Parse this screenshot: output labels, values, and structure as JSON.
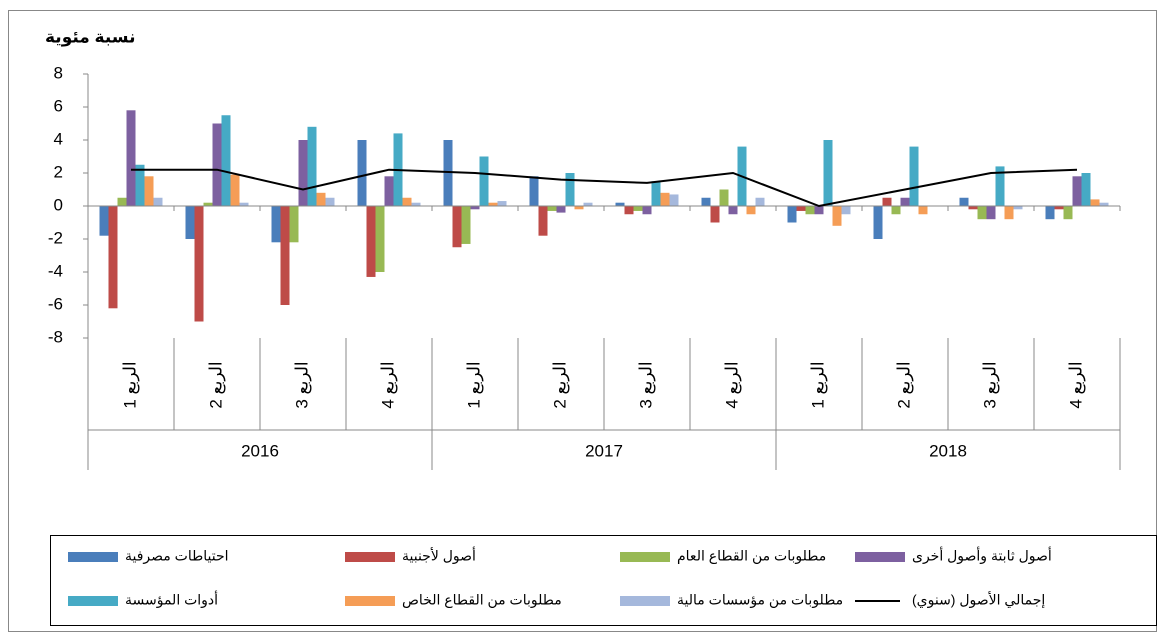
{
  "chart_data": {
    "type": "bar",
    "title": "نسبة مئوية",
    "categories": [
      "الربع 1",
      "الربع 2",
      "الربع 3",
      "الربع 4",
      "الربع 1",
      "الربع 2",
      "الربع 3",
      "الربع 4",
      "الربع 1",
      "الربع 2",
      "الربع 3",
      "الربع 4"
    ],
    "years": [
      "2016",
      "2017",
      "2018"
    ],
    "ylim": [
      -8,
      8
    ],
    "yticks": [
      -8,
      -6,
      -4,
      -2,
      0,
      2,
      4,
      6,
      8
    ],
    "series": [
      {
        "name": "احتياطات مصرفية",
        "color": "#4a7ebb",
        "values": [
          -1.8,
          -2,
          -2.2,
          4,
          4,
          1.8,
          0.2,
          0.5,
          -1,
          -2,
          0.5,
          -0.8
        ]
      },
      {
        "name": "أصول لأجنبية",
        "color": "#be4b48",
        "values": [
          -6.2,
          -7,
          -6,
          -4.3,
          -2.5,
          -1.8,
          -0.5,
          -1,
          -0.3,
          0.5,
          -0.2,
          -0.2
        ]
      },
      {
        "name": "مطلوبات من القطاع العام",
        "color": "#98b954",
        "values": [
          0.5,
          0.2,
          -2.2,
          -4,
          -2.3,
          -0.3,
          -0.3,
          1,
          -0.5,
          -0.5,
          -0.8,
          -0.8
        ]
      },
      {
        "name": "أصول ثابتة وأصول أخرى",
        "color": "#7d60a0",
        "values": [
          5.8,
          5,
          4,
          1.8,
          -0.2,
          -0.4,
          -0.5,
          -0.5,
          -0.5,
          0.5,
          -0.8,
          1.8
        ]
      },
      {
        "name": "أدوات المؤسسة",
        "color": "#46aac5",
        "values": [
          2.5,
          5.5,
          4.8,
          4.4,
          3,
          2,
          1.5,
          3.6,
          4,
          3.6,
          2.4,
          2
        ]
      },
      {
        "name": "مطلوبات من القطاع الخاص",
        "color": "#f59d56",
        "values": [
          1.8,
          1.9,
          0.8,
          0.5,
          0.2,
          -0.2,
          0.8,
          -0.5,
          -1.2,
          -0.5,
          -0.8,
          0.4
        ]
      },
      {
        "name": "مطلوبات من مؤسسات مالية",
        "color": "#a5b8dc",
        "values": [
          0.5,
          0.2,
          0.5,
          0.2,
          0.3,
          0.2,
          0.7,
          0.5,
          -0.5,
          0,
          -0.2,
          0.2
        ]
      },
      {
        "name": "إجمالي الأصول (سنوي)",
        "color": "#000000",
        "type": "line",
        "values": [
          2.2,
          2.2,
          1.0,
          2.2,
          2.0,
          1.6,
          1.4,
          2.0,
          0,
          1.0,
          2.0,
          2.2
        ]
      }
    ]
  }
}
